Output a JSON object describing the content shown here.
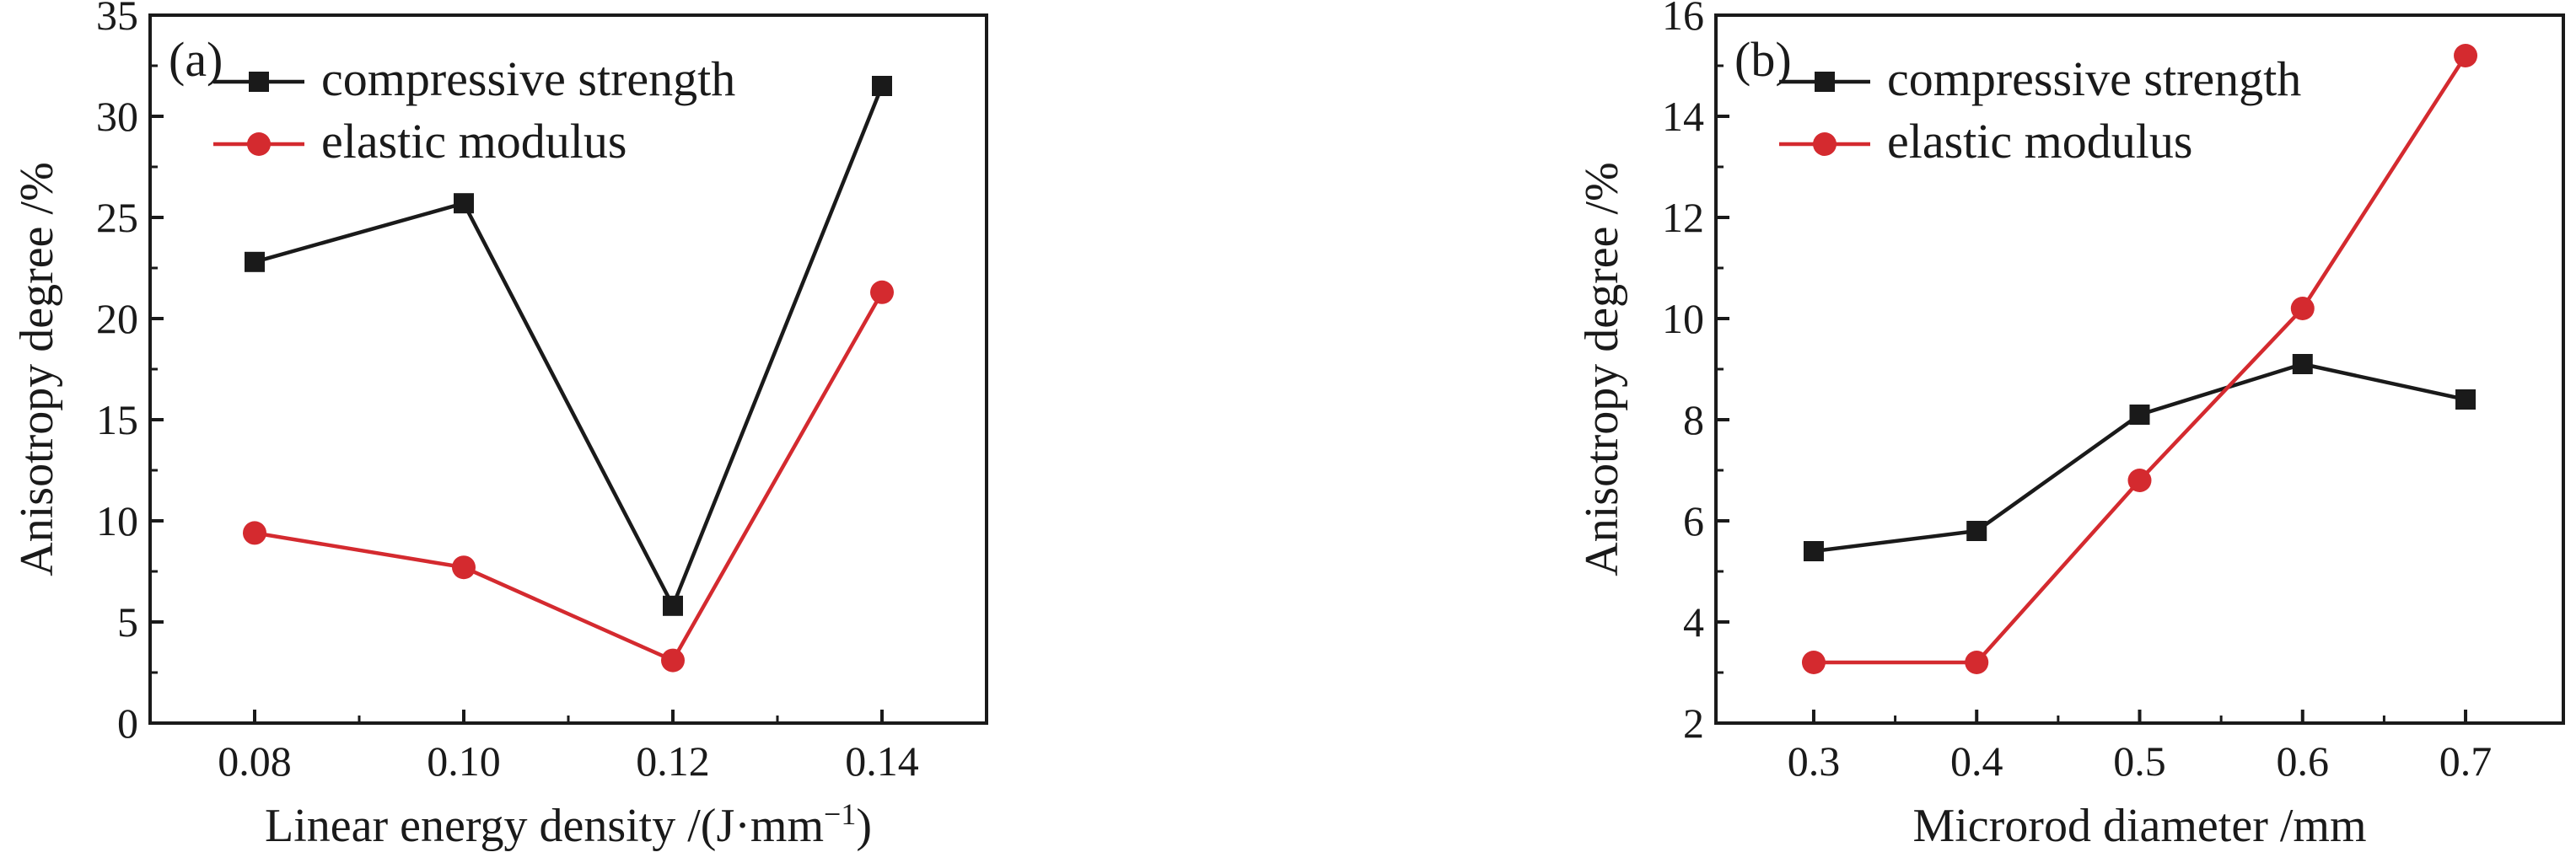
{
  "chart_data": [
    {
      "type": "line",
      "panel_label": "(a)",
      "xlabel": "Linear energy density /(J·mm",
      "xlabel_sup": "−1",
      "xlabel_tail": ")",
      "ylabel": "Anisotropy degree /%",
      "categories": [
        "0.08",
        "0.10",
        "0.12",
        "0.14"
      ],
      "x": [
        0.08,
        0.1,
        0.12,
        0.14
      ],
      "xlim": [
        0.07,
        0.15
      ],
      "xticks": [
        "0.08",
        "0.10",
        "0.12",
        "0.14"
      ],
      "ylim": [
        0,
        35
      ],
      "yticks": [
        "0",
        "5",
        "10",
        "15",
        "20",
        "25",
        "30",
        "35"
      ],
      "grid": false,
      "legend_position": "top-left",
      "series": [
        {
          "name": "compressive strength",
          "color": "#1a1a1a",
          "marker": "square",
          "values": [
            22.8,
            25.7,
            5.8,
            31.5
          ]
        },
        {
          "name": "elastic modulus",
          "color": "#d42a2f",
          "marker": "circle",
          "values": [
            9.4,
            7.7,
            3.1,
            21.3
          ]
        }
      ]
    },
    {
      "type": "line",
      "panel_label": "(b)",
      "xlabel": "Microrod diameter /mm",
      "xlabel_sup": "",
      "xlabel_tail": "",
      "ylabel": "Anisotropy degree /%",
      "categories": [
        "0.3",
        "0.4",
        "0.5",
        "0.6",
        "0.7"
      ],
      "x": [
        0.3,
        0.4,
        0.5,
        0.6,
        0.7
      ],
      "xlim": [
        0.24,
        0.76
      ],
      "xticks": [
        "0.3",
        "0.4",
        "0.5",
        "0.6",
        "0.7"
      ],
      "ylim": [
        2,
        16
      ],
      "yticks": [
        "2",
        "4",
        "6",
        "8",
        "10",
        "12",
        "14",
        "16"
      ],
      "grid": false,
      "legend_position": "top-left",
      "series": [
        {
          "name": "compressive strength",
          "color": "#1a1a1a",
          "marker": "square",
          "values": [
            5.4,
            5.8,
            8.1,
            9.1,
            8.4
          ]
        },
        {
          "name": "elastic modulus",
          "color": "#d42a2f",
          "marker": "circle",
          "values": [
            3.2,
            3.2,
            6.8,
            10.2,
            15.2
          ]
        }
      ]
    }
  ]
}
